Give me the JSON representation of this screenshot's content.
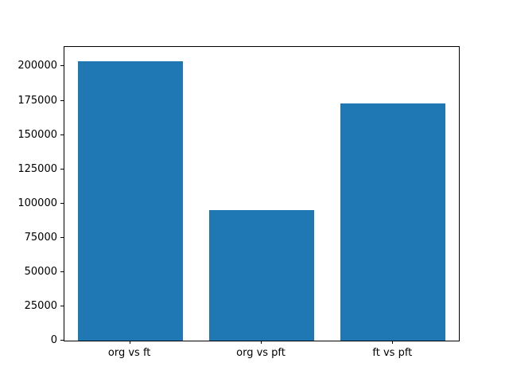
{
  "chart_data": {
    "type": "bar",
    "categories": [
      "org vs ft",
      "org vs pft",
      "ft vs pft"
    ],
    "values": [
      204000,
      95000,
      173000
    ],
    "title": "",
    "xlabel": "",
    "ylabel": "",
    "ylim": [
      0,
      214200
    ],
    "yticks": [
      0,
      25000,
      50000,
      75000,
      100000,
      125000,
      150000,
      175000,
      200000
    ],
    "bar_color": "#1f77b4",
    "grid": false,
    "background_color": "#ffffff",
    "legend_position": "none"
  }
}
